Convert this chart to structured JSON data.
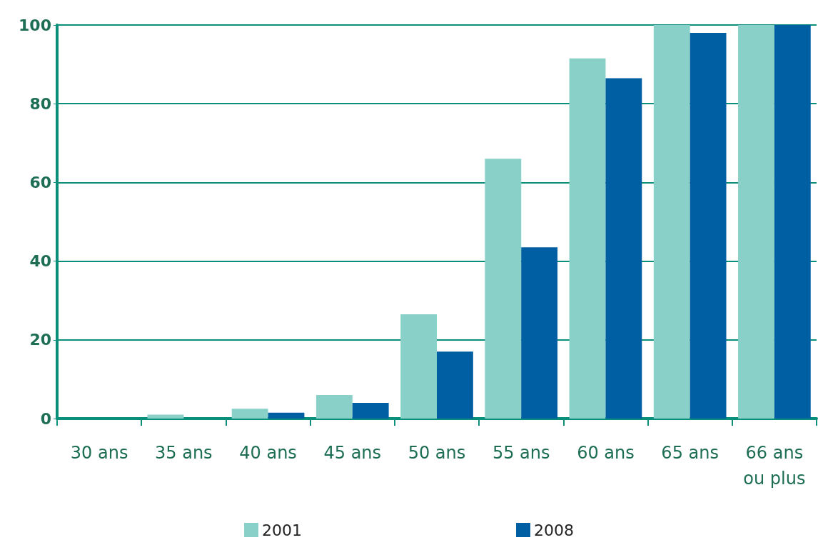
{
  "chart_data": {
    "type": "bar",
    "categories": [
      "30 ans",
      "35 ans",
      "40 ans",
      "45 ans",
      "50 ans",
      "55 ans",
      "60 ans",
      "65 ans",
      "66 ans\nou plus"
    ],
    "series": [
      {
        "name": "2001",
        "color": "#88d0c8",
        "values": [
          0,
          1,
          2.5,
          6,
          26.5,
          66,
          91.5,
          100,
          100
        ]
      },
      {
        "name": "2008",
        "color": "#005ea2",
        "values": [
          0,
          0,
          1.5,
          4,
          17,
          43.5,
          86.5,
          98,
          100
        ]
      }
    ],
    "ylim": [
      0,
      100
    ],
    "yticks": [
      0,
      20,
      40,
      60,
      80,
      100
    ],
    "grid": "y",
    "legend": "bottom"
  }
}
